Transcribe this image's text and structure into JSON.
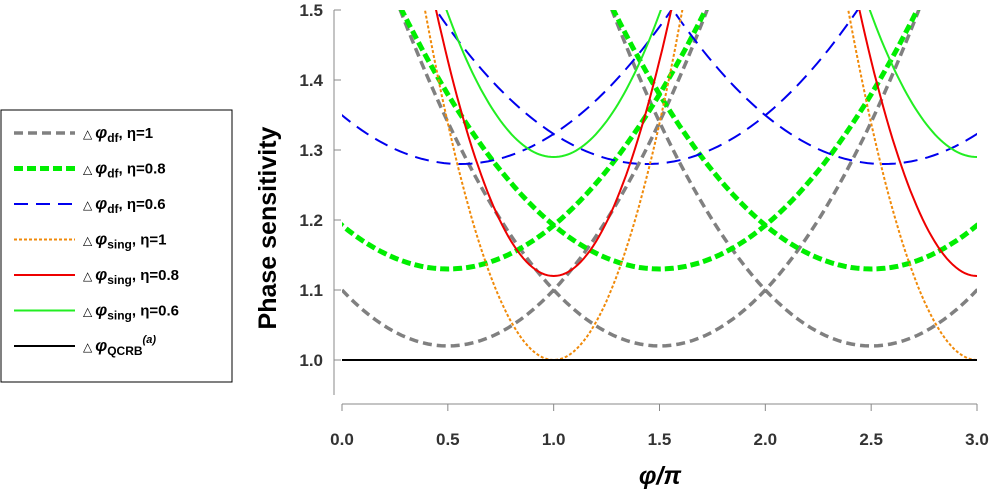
{
  "chart_data": {
    "type": "line",
    "title": "",
    "xlabel": "φ/π",
    "ylabel": "Phase sensitivity",
    "xlim": [
      0,
      3
    ],
    "ylim": [
      0.95,
      1.5
    ],
    "xticks": [
      {
        "value": 0.0,
        "label": "0.0"
      },
      {
        "value": 0.5,
        "label": "0.5"
      },
      {
        "value": 1.0,
        "label": "1.0"
      },
      {
        "value": 1.5,
        "label": "1.5"
      },
      {
        "value": 2.0,
        "label": "2.0"
      },
      {
        "value": 2.5,
        "label": "2.5"
      },
      {
        "value": 3.0,
        "label": "3.0"
      }
    ],
    "yticks": [
      {
        "value": 1.0,
        "label": "1.0"
      },
      {
        "value": 1.1,
        "label": "1.1"
      },
      {
        "value": 1.2,
        "label": "1.2"
      },
      {
        "value": 1.3,
        "label": "1.3"
      },
      {
        "value": 1.4,
        "label": "1.4"
      },
      {
        "value": 1.5,
        "label": "1.5"
      }
    ],
    "grid": false,
    "legend_position": "left",
    "series": [
      {
        "key": "df1",
        "legend_main": "φ",
        "legend_sub": "df",
        "legend_rest": ", η=1",
        "legend_sym": "△",
        "color": "#808080",
        "dash": "9,5",
        "min_at": [
          0.5,
          1.5,
          2.5
        ],
        "min_value": 1.02,
        "exit_x": 1.75
      },
      {
        "key": "df08",
        "legend_main": "φ",
        "legend_sub": "df",
        "legend_rest": ", η=0.8",
        "legend_sym": "△",
        "color": "#00ee00",
        "dash": "9,4",
        "min_at": [
          0.5,
          1.5,
          2.5
        ],
        "min_value": 1.13,
        "exit_x": 1.75
      },
      {
        "key": "df06",
        "legend_main": "φ",
        "legend_sub": "df",
        "legend_rest": ", η=0.6",
        "legend_sym": "△",
        "color": "#0000ee",
        "dash": "14,8",
        "min_at": [
          0.56,
          1.44,
          2.56
        ],
        "min_value": 1.28,
        "exit_x": 1.6
      },
      {
        "key": "sing1",
        "legend_main": "φ",
        "legend_sub": "sing",
        "legend_rest": ", η=1",
        "legend_sym": "△",
        "color": "#f08a0a",
        "dash": "3,2",
        "min_at": [
          1.0,
          3.0
        ],
        "min_value": 1.0,
        "exit_x": 1.62
      },
      {
        "key": "sing08",
        "legend_main": "φ",
        "legend_sub": "sing",
        "legend_rest": ", η=0.8",
        "legend_sym": "△",
        "color": "#ee0000",
        "dash": "",
        "min_at": [
          1.0,
          3.0
        ],
        "min_value": 1.12,
        "exit_x": 1.57
      },
      {
        "key": "sing06",
        "legend_main": "φ",
        "legend_sub": "sing",
        "legend_rest": ", η=0.6",
        "legend_sym": "△",
        "color": "#22ee22",
        "dash": "",
        "min_at": [
          1.0,
          3.0
        ],
        "min_value": 1.29,
        "exit_x": 1.53
      },
      {
        "key": "qcrb",
        "legend_main": "φ",
        "legend_sub": "QCRB",
        "legend_sup": "(a)",
        "legend_rest": "",
        "legend_sym": "△",
        "color": "#000000",
        "dash": "",
        "constant": 1.0
      }
    ]
  }
}
